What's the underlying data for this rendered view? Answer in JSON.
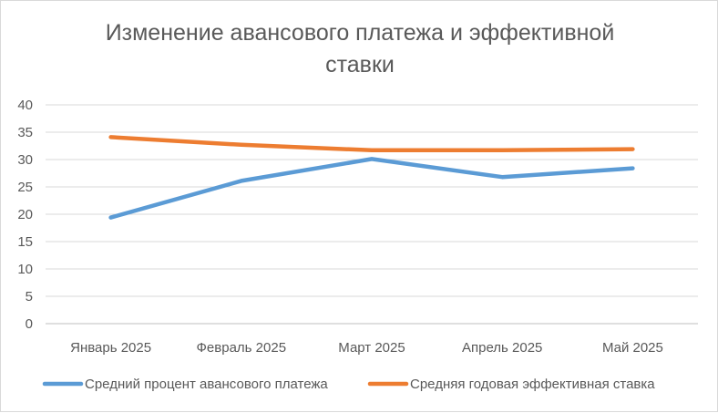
{
  "chart_data": {
    "type": "line",
    "title_lines": [
      "Изменение авансового платежа и эффективной",
      "ставки"
    ],
    "categories": [
      "Январь 2025",
      "Февраль 2025",
      "Март 2025",
      "Апрель 2025",
      "Май 2025"
    ],
    "series": [
      {
        "name": "Средний процент авансового платежа",
        "values": [
          19.4,
          26.1,
          30.1,
          26.8,
          28.4
        ],
        "color": "#5b9bd5"
      },
      {
        "name": "Средняя годовая эффективная ставка",
        "values": [
          34.1,
          32.7,
          31.7,
          31.7,
          31.9
        ],
        "color": "#ed7d31"
      }
    ],
    "ylim": [
      0,
      40
    ],
    "yticks": [
      "0",
      "5",
      "10",
      "15",
      "20",
      "25",
      "30",
      "35",
      "40"
    ],
    "grid": true,
    "legend_position": "bottom"
  }
}
